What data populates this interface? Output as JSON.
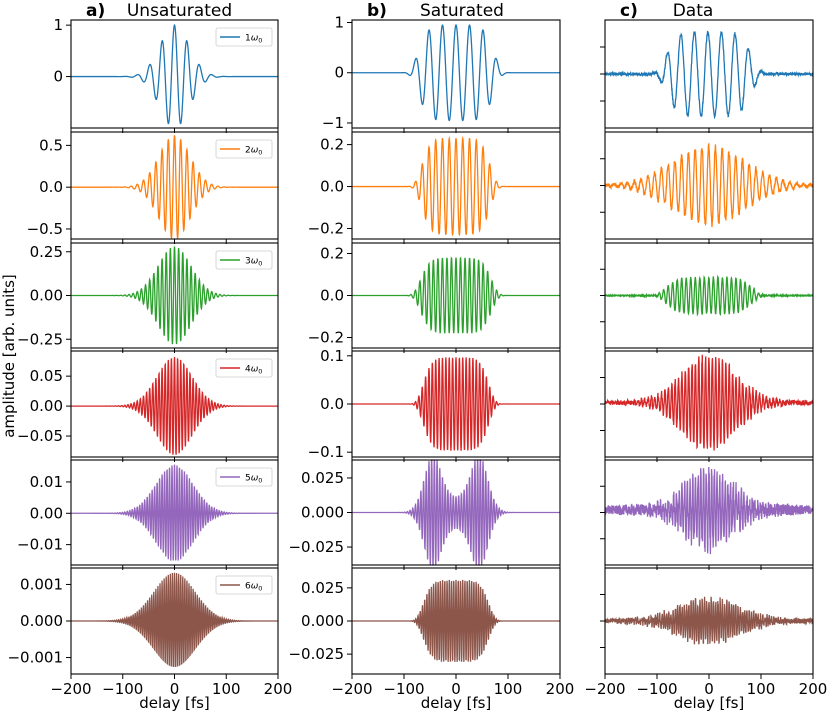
{
  "chart_data": {
    "type": "line",
    "figure": {
      "ylabel": "amplitude [arb. units]",
      "xlabel": "delay [fs]",
      "xlim": [
        -200,
        200
      ],
      "xticks": [
        -200,
        -100,
        0,
        100,
        200
      ],
      "columns": [
        {
          "letter": "a)",
          "title": "Unsaturated"
        },
        {
          "letter": "b)",
          "title": "Saturated"
        },
        {
          "letter": "c)",
          "title": "Data"
        }
      ],
      "rows": [
        {
          "harmonic": 1,
          "legend_number": "1",
          "legend_symbol": "ω",
          "legend_subscript": "0",
          "color": "#1f77b4"
        },
        {
          "harmonic": 2,
          "legend_number": "2",
          "legend_symbol": "ω",
          "legend_subscript": "0",
          "color": "#ff7f0e"
        },
        {
          "harmonic": 3,
          "legend_number": "3",
          "legend_symbol": "ω",
          "legend_subscript": "0",
          "color": "#2ca02c"
        },
        {
          "harmonic": 4,
          "legend_number": "4",
          "legend_symbol": "ω",
          "legend_subscript": "0",
          "color": "#d62728"
        },
        {
          "harmonic": 5,
          "legend_number": "5",
          "legend_symbol": "ω",
          "legend_subscript": "0",
          "color": "#9467bd"
        },
        {
          "harmonic": 6,
          "legend_number": "6",
          "legend_symbol": "ω",
          "legend_subscript": "0",
          "color": "#8c564b"
        }
      ]
    },
    "panels": [
      {
        "col": 0,
        "row": 0,
        "ylim": [
          -1.0,
          1.1
        ],
        "yticks": [
          {
            "v": 1,
            "label": "1"
          },
          {
            "v": 0,
            "label": "0"
          }
        ],
        "series": {
          "period": 24.0,
          "phase": 0,
          "envelope": "gauss",
          "amp": 1.0,
          "width": 28,
          "noise": 0
        }
      },
      {
        "col": 0,
        "row": 1,
        "ylim": [
          -0.62,
          0.66
        ],
        "yticks": [
          {
            "v": 0.5,
            "label": "0.5"
          },
          {
            "v": 0,
            "label": "0.0"
          },
          {
            "v": -0.5,
            "label": "−0.5"
          }
        ],
        "series": {
          "period": 12.0,
          "phase": 0,
          "envelope": "gauss",
          "amp": 0.62,
          "width": 30,
          "noise": 0
        }
      },
      {
        "col": 0,
        "row": 2,
        "ylim": [
          -0.3,
          0.3
        ],
        "yticks": [
          {
            "v": 0.25,
            "label": "0.25"
          },
          {
            "v": 0,
            "label": "0.00"
          },
          {
            "v": -0.25,
            "label": "−0.25"
          }
        ],
        "series": {
          "period": 8.0,
          "phase": 0,
          "envelope": "gauss",
          "amp": 0.28,
          "width": 32,
          "noise": 0
        }
      },
      {
        "col": 0,
        "row": 3,
        "ylim": [
          -0.085,
          0.092
        ],
        "yticks": [
          {
            "v": 0.05,
            "label": "0.05"
          },
          {
            "v": 0,
            "label": "0.00"
          },
          {
            "v": -0.05,
            "label": "−0.05"
          }
        ],
        "series": {
          "period": 6.0,
          "phase": 0,
          "envelope": "gauss",
          "amp": 0.082,
          "width": 34,
          "noise": 0
        }
      },
      {
        "col": 0,
        "row": 4,
        "ylim": [
          -0.0165,
          0.017
        ],
        "yticks": [
          {
            "v": 0.01,
            "label": "0.01"
          },
          {
            "v": 0,
            "label": "0.00"
          },
          {
            "v": -0.01,
            "label": "−0.01"
          }
        ],
        "series": {
          "period": 4.8,
          "phase": 0,
          "envelope": "gauss",
          "amp": 0.0155,
          "width": 36,
          "noise": 0
        }
      },
      {
        "col": 0,
        "row": 5,
        "ylim": [
          -0.00145,
          0.00145
        ],
        "yticks": [
          {
            "v": 0.001,
            "label": "0.001"
          },
          {
            "v": 0,
            "label": "0.000"
          },
          {
            "v": -0.001,
            "label": "−0.001"
          }
        ],
        "series": {
          "period": 4.0,
          "phase": 0,
          "envelope": "gauss",
          "amp": 0.00132,
          "width": 40,
          "noise": 0
        }
      },
      {
        "col": 1,
        "row": 0,
        "ylim": [
          -1.1,
          1.05
        ],
        "yticks": [
          {
            "v": 1,
            "label": "1"
          },
          {
            "v": 0,
            "label": "0"
          },
          {
            "v": -1,
            "label": "−1"
          }
        ],
        "series": {
          "period": 26.0,
          "phase": 0,
          "envelope": "flat",
          "amp": 0.95,
          "width": 75,
          "noise": 0
        }
      },
      {
        "col": 1,
        "row": 1,
        "ylim": [
          -0.25,
          0.26
        ],
        "yticks": [
          {
            "v": 0.2,
            "label": "0.2"
          },
          {
            "v": 0,
            "label": "0.0"
          },
          {
            "v": -0.2,
            "label": "−0.2"
          }
        ],
        "series": {
          "period": 13.0,
          "phase": 0,
          "envelope": "flat",
          "amp": 0.23,
          "width": 68,
          "noise": 0
        }
      },
      {
        "col": 1,
        "row": 2,
        "ylim": [
          -0.25,
          0.25
        ],
        "yticks": [
          {
            "v": 0.2,
            "label": "0.2"
          },
          {
            "v": 0,
            "label": "0.0"
          },
          {
            "v": -0.2,
            "label": "−0.2"
          }
        ],
        "series": {
          "period": 8.7,
          "phase": 0,
          "envelope": "flat",
          "amp": 0.18,
          "width": 70,
          "noise": 0
        }
      },
      {
        "col": 1,
        "row": 3,
        "ylim": [
          -0.11,
          0.11
        ],
        "yticks": [
          {
            "v": 0.1,
            "label": "0.1"
          },
          {
            "v": 0,
            "label": "0.0"
          },
          {
            "v": -0.1,
            "label": "−0.1"
          }
        ],
        "series": {
          "period": 6.5,
          "phase": 0,
          "envelope": "flat",
          "amp": 0.097,
          "width": 65,
          "noise": 0
        }
      },
      {
        "col": 1,
        "row": 4,
        "ylim": [
          -0.038,
          0.038
        ],
        "yticks": [
          {
            "v": 0.025,
            "label": "0.025"
          },
          {
            "v": 0,
            "label": "0.000"
          },
          {
            "v": -0.025,
            "label": "−0.025"
          }
        ],
        "series": {
          "period": 5.2,
          "phase": 0,
          "envelope": "double",
          "amp": 0.032,
          "width": 60,
          "noise": 0
        }
      },
      {
        "col": 1,
        "row": 5,
        "ylim": [
          -0.04,
          0.04
        ],
        "yticks": [
          {
            "v": 0.025,
            "label": "0.025"
          },
          {
            "v": 0,
            "label": "0.000"
          },
          {
            "v": -0.025,
            "label": "−0.025"
          }
        ],
        "series": {
          "period": 4.3,
          "phase": 0,
          "envelope": "flat",
          "amp": 0.031,
          "width": 65,
          "noise": 0
        }
      },
      {
        "col": 2,
        "row": 0,
        "ylim": [
          -1.1,
          1.1
        ],
        "yticks": [],
        "series": {
          "period": 26.0,
          "phase": 0.5,
          "envelope": "flat",
          "amp": 0.85,
          "width": 85,
          "noise": 0.05
        }
      },
      {
        "col": 2,
        "row": 1,
        "ylim": [
          -1.1,
          1.1
        ],
        "yticks": [],
        "series": {
          "period": 13.0,
          "phase": 0.3,
          "envelope": "gauss",
          "amp": 0.8,
          "width": 70,
          "noise": 0.08
        }
      },
      {
        "col": 2,
        "row": 2,
        "ylim": [
          -1.0,
          1.0
        ],
        "yticks": [],
        "series": {
          "period": 8.7,
          "phase": 0.2,
          "envelope": "flat",
          "amp": 0.35,
          "width": 85,
          "noise": 0.05
        }
      },
      {
        "col": 2,
        "row": 3,
        "ylim": [
          -1.05,
          1.0
        ],
        "yticks": [],
        "series": {
          "period": 6.5,
          "phase": 0.1,
          "envelope": "gauss",
          "amp": 0.9,
          "width": 52,
          "noise": 0.09
        }
      },
      {
        "col": 2,
        "row": 4,
        "ylim": [
          -1.1,
          1.0
        ],
        "yticks": [],
        "series": {
          "period": 5.2,
          "phase": 0.1,
          "envelope": "gauss",
          "amp": 0.75,
          "width": 45,
          "noise": 0.25
        }
      },
      {
        "col": 2,
        "row": 5,
        "ylim": [
          -1.0,
          1.0
        ],
        "yticks": [],
        "series": {
          "period": 4.3,
          "phase": 0.1,
          "envelope": "gauss",
          "amp": 0.4,
          "width": 60,
          "noise": 0.22
        }
      }
    ]
  }
}
